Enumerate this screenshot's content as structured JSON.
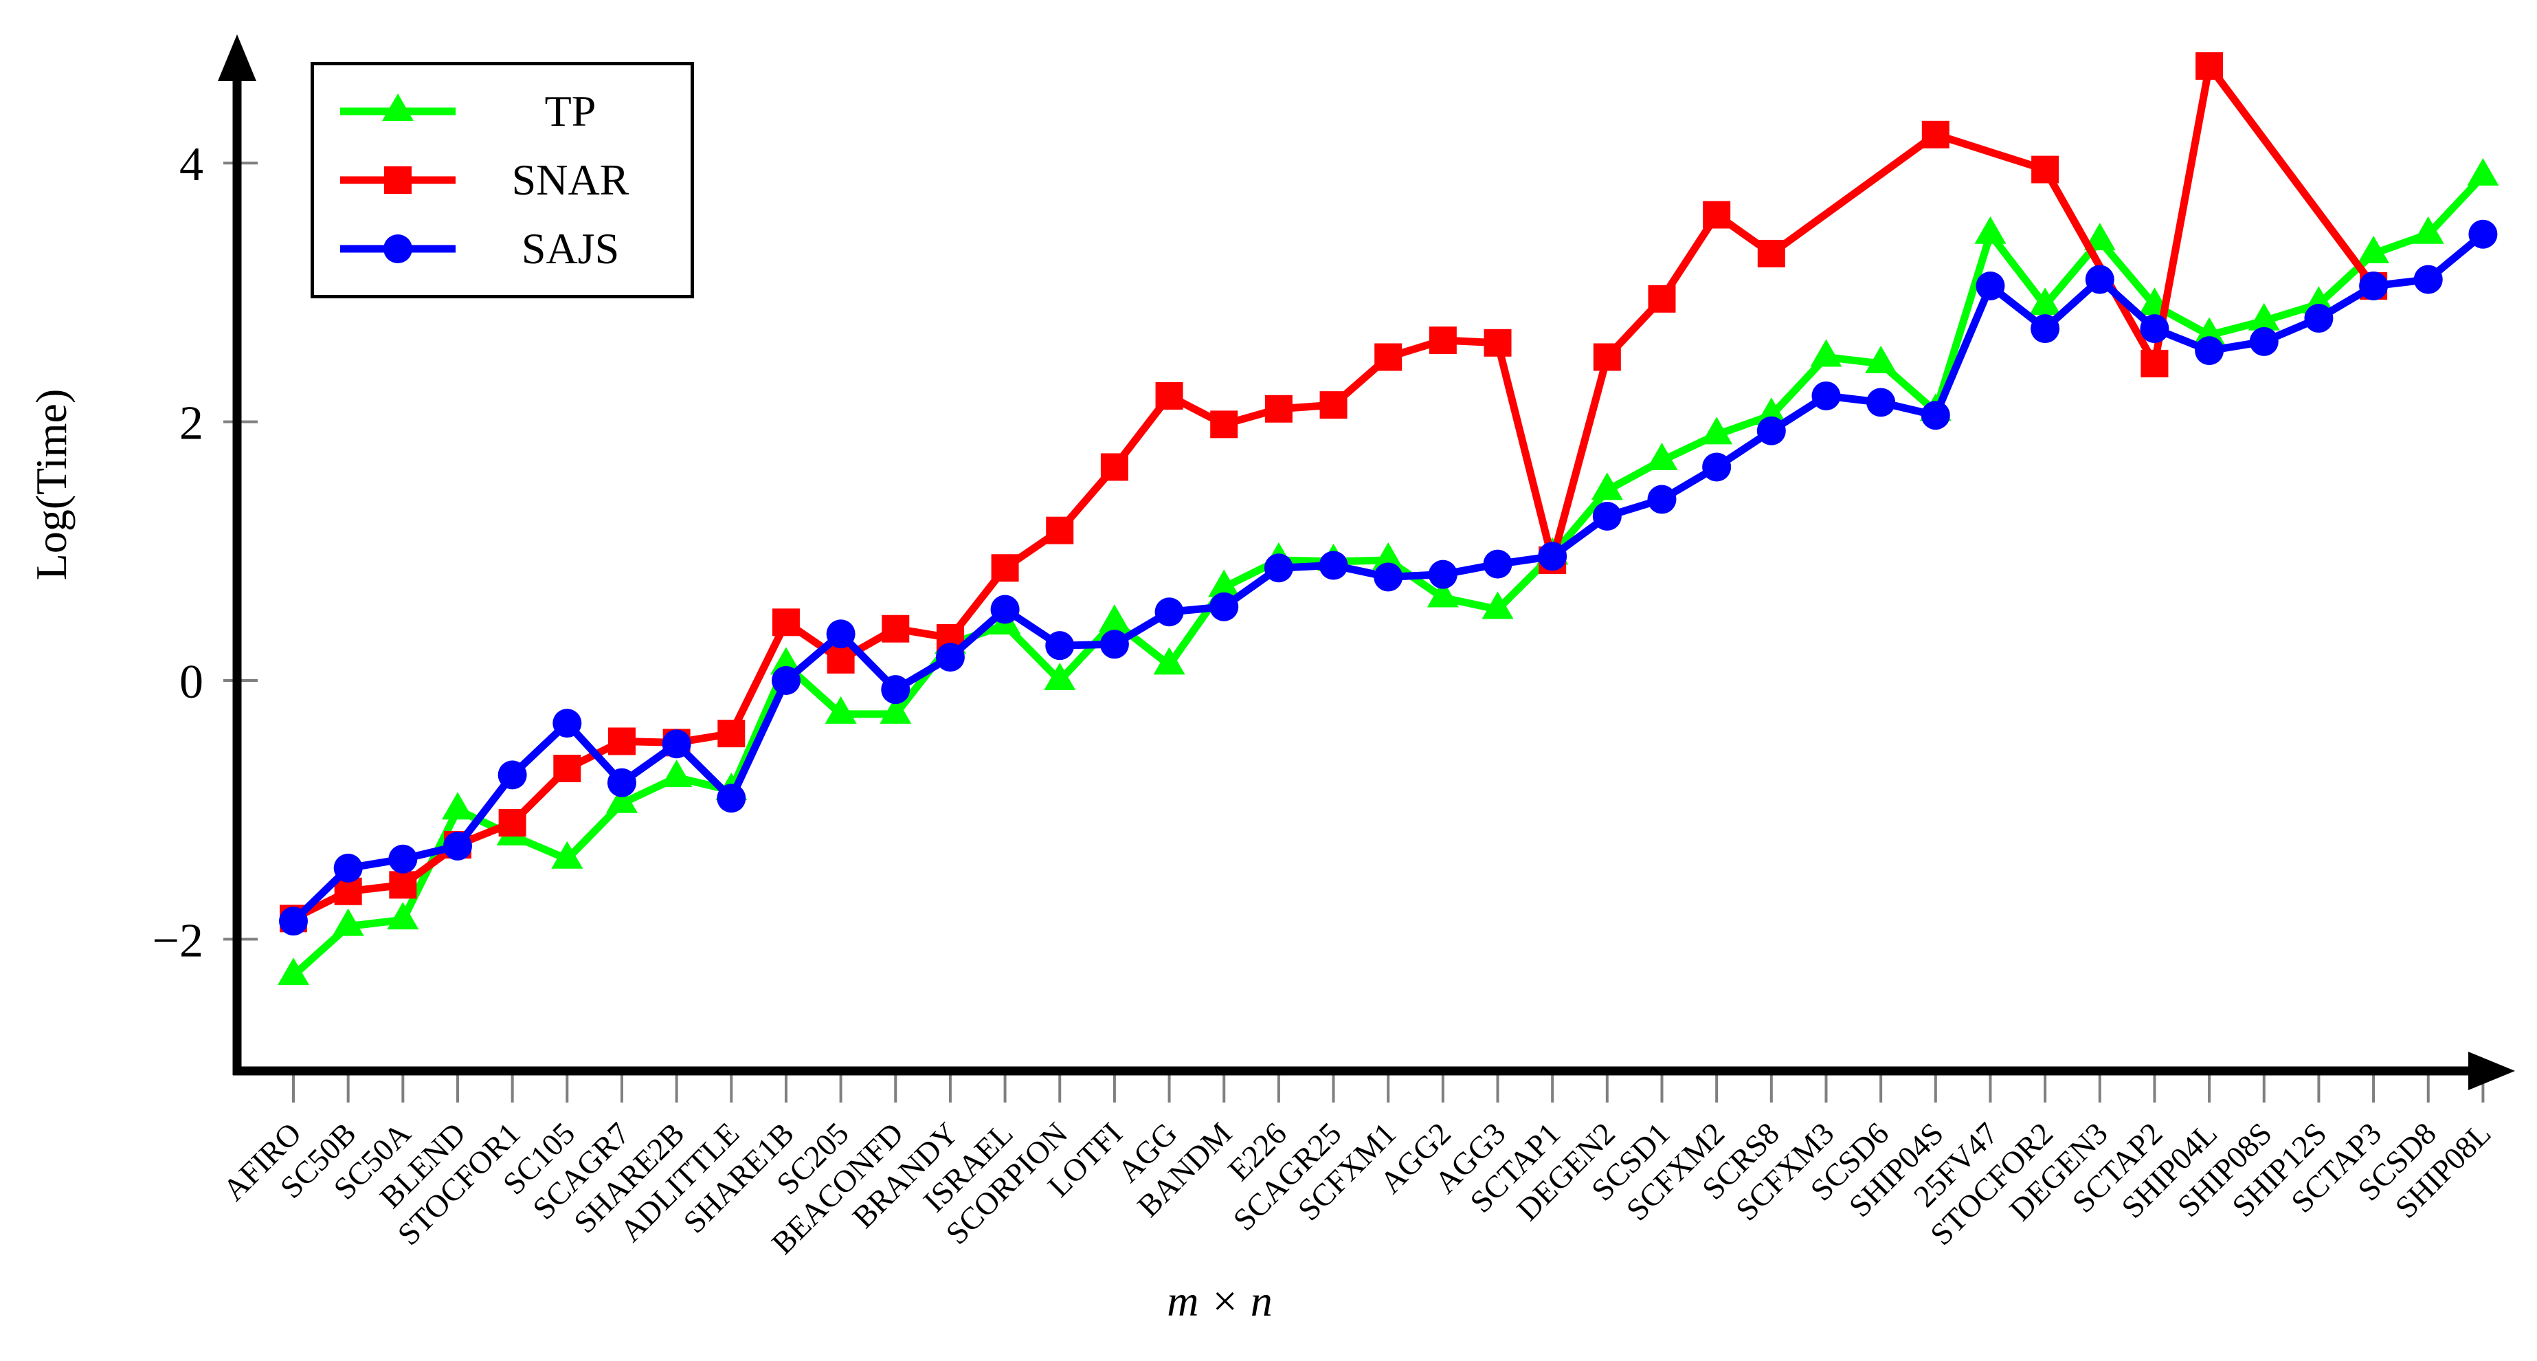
{
  "figure": {
    "background": "#ffffff",
    "axis_color": "#000000",
    "tick_color": "#7f7f7f"
  },
  "chart_data": {
    "type": "line",
    "title": "",
    "xlabel": "m × n",
    "ylabel": "Log(Time)",
    "grid": false,
    "legend_position": "top-left",
    "ylim": [
      -3.05,
      4.95
    ],
    "yticks": [
      -2,
      0,
      2,
      4
    ],
    "categories": [
      "AFIRO",
      "SC50B",
      "SC50A",
      "BLEND",
      "STOCFOR1",
      "SC105",
      "SCAGR7",
      "SHARE2B",
      "ADLITTLE",
      "SHARE1B",
      "SC205",
      "BEACONFD",
      "BRANDY",
      "ISRAEL",
      "SCORPION",
      "LOTFI",
      "AGG",
      "BANDM",
      "E226",
      "SCAGR25",
      "SCFXM1",
      "AGG2",
      "AGG3",
      "SCTAP1",
      "DEGEN2",
      "SCSD1",
      "SCFXM2",
      "SCRS8",
      "SCFXM3",
      "SCSD6",
      "SHIP04S",
      "25FV47",
      "STOCFOR2",
      "DEGEN3",
      "SCTAP2",
      "SHIP04L",
      "SHIP08S",
      "SHIP12S",
      "SCTAP3",
      "SCSD8",
      "SHIP08L"
    ],
    "series": [
      {
        "name": "TP",
        "color": "#00ff00",
        "marker": "triangle",
        "values": [
          -2.28,
          -1.9,
          -1.85,
          -1.0,
          -1.2,
          -1.38,
          -0.95,
          -0.75,
          -0.85,
          0.12,
          -0.26,
          -0.26,
          0.28,
          0.43,
          0.0,
          0.45,
          0.12,
          0.72,
          0.93,
          0.92,
          0.93,
          0.64,
          0.55,
          0.97,
          1.47,
          1.7,
          1.9,
          2.05,
          2.5,
          2.45,
          2.08,
          3.45,
          2.9,
          3.4,
          2.9,
          2.67,
          2.78,
          2.91,
          3.3,
          3.45,
          3.9
        ]
      },
      {
        "name": "SNAR",
        "color": "#ff0000",
        "marker": "square",
        "values": [
          -1.84,
          -1.63,
          -1.58,
          -1.27,
          -1.1,
          -0.68,
          -0.47,
          -0.48,
          -0.41,
          0.45,
          0.16,
          0.4,
          0.33,
          0.87,
          1.16,
          1.65,
          2.2,
          1.98,
          2.1,
          2.13,
          2.5,
          2.63,
          2.61,
          0.93,
          2.5,
          2.95,
          3.6,
          3.3,
          null,
          null,
          4.22,
          null,
          3.95,
          null,
          2.45,
          4.75,
          null,
          null,
          3.05,
          null,
          null
        ]
      },
      {
        "name": "SAJS",
        "color": "#0000ff",
        "marker": "circle",
        "values": [
          -1.86,
          -1.45,
          -1.38,
          -1.28,
          -0.73,
          -0.33,
          -0.79,
          -0.49,
          -0.91,
          0.0,
          0.36,
          -0.07,
          0.18,
          0.55,
          0.27,
          0.28,
          0.53,
          0.57,
          0.87,
          0.89,
          0.8,
          0.82,
          0.9,
          0.96,
          1.27,
          1.4,
          1.65,
          1.93,
          2.2,
          2.15,
          2.05,
          3.05,
          2.72,
          3.1,
          2.72,
          2.55,
          2.62,
          2.8,
          3.05,
          3.1,
          3.45
        ]
      }
    ]
  }
}
